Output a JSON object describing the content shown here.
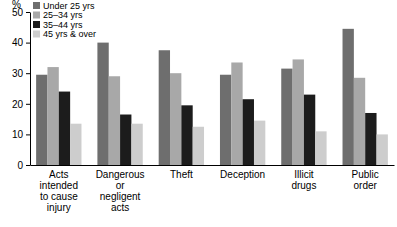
{
  "chart_data": {
    "type": "bar",
    "y_label": "%",
    "categories": [
      "Acts intended to cause injury",
      "Dangerous or negligent acts",
      "Theft",
      "Deception",
      "Illicit drugs",
      "Public order"
    ],
    "series": [
      {
        "name": "Under 25 yrs",
        "color": "#6e6e6e",
        "values": [
          29.5,
          40,
          37.5,
          29.5,
          31.5,
          44.5
        ]
      },
      {
        "name": "25–34 yrs",
        "color": "#a8a8a8",
        "values": [
          32,
          29,
          30,
          33.5,
          34.5,
          28.5
        ]
      },
      {
        "name": "35–44 yrs",
        "color": "#1c1c1c",
        "values": [
          24,
          16.5,
          19.5,
          21.5,
          23,
          17
        ]
      },
      {
        "name": "45 yrs & over",
        "color": "#cdcdcd",
        "values": [
          13.5,
          13.5,
          12.5,
          14.5,
          11,
          10
        ]
      }
    ],
    "ylim": [
      0,
      50
    ],
    "yticks": [
      0,
      10,
      20,
      30,
      40,
      50
    ],
    "grid": false,
    "legend": "upper left"
  }
}
